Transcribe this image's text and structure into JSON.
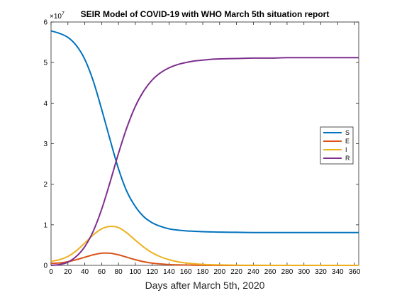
{
  "chart_data": {
    "type": "line",
    "title": "SEIR Model of COVID-19 with WHO March 5th situation report",
    "xlabel": "Days after March 5th, 2020",
    "ylabel": "",
    "xlim": [
      0,
      365
    ],
    "ylim": [
      0,
      6
    ],
    "y_exponent_label": "×10",
    "y_exponent_power": "7",
    "x_ticks": [
      0,
      20,
      40,
      60,
      80,
      100,
      120,
      140,
      160,
      180,
      200,
      220,
      240,
      260,
      280,
      300,
      320,
      340,
      360
    ],
    "y_ticks": [
      0,
      1,
      2,
      3,
      4,
      5,
      6
    ],
    "x_tick_labels": [
      "0",
      "20",
      "40",
      "60",
      "80",
      "100",
      "120",
      "140",
      "160",
      "180",
      "200",
      "220",
      "240",
      "260",
      "280",
      "300",
      "320",
      "340",
      "360"
    ],
    "y_tick_labels": [
      "0",
      "1",
      "2",
      "3",
      "4",
      "5",
      "6"
    ],
    "grid": false,
    "legend_position": "right",
    "x": [
      0,
      10,
      20,
      30,
      40,
      50,
      60,
      70,
      80,
      90,
      100,
      110,
      120,
      130,
      140,
      150,
      160,
      170,
      180,
      190,
      200,
      220,
      240,
      260,
      280,
      300,
      320,
      340,
      365
    ],
    "series": [
      {
        "name": "S",
        "color": "#0072BD",
        "values": [
          5.78,
          5.72,
          5.62,
          5.42,
          5.08,
          4.55,
          3.85,
          3.1,
          2.38,
          1.82,
          1.45,
          1.2,
          1.05,
          0.96,
          0.9,
          0.87,
          0.85,
          0.84,
          0.83,
          0.825,
          0.82,
          0.815,
          0.81,
          0.81,
          0.81,
          0.81,
          0.81,
          0.81,
          0.81
        ]
      },
      {
        "name": "E",
        "color": "#D95319",
        "values": [
          0.05,
          0.06,
          0.09,
          0.14,
          0.2,
          0.26,
          0.3,
          0.3,
          0.26,
          0.2,
          0.14,
          0.09,
          0.055,
          0.035,
          0.02,
          0.012,
          0.008,
          0.005,
          0.003,
          0.002,
          0.001,
          0.0,
          0.0,
          0.0,
          0.0,
          0.0,
          0.0,
          0.0,
          0.0
        ]
      },
      {
        "name": "I",
        "color": "#EDB120",
        "values": [
          0.1,
          0.14,
          0.22,
          0.36,
          0.55,
          0.75,
          0.9,
          0.96,
          0.93,
          0.8,
          0.62,
          0.45,
          0.31,
          0.21,
          0.14,
          0.09,
          0.06,
          0.04,
          0.025,
          0.016,
          0.01,
          0.004,
          0.002,
          0.001,
          0.0,
          0.0,
          0.0,
          0.0,
          0.0
        ]
      },
      {
        "name": "R",
        "color": "#7E2F8E",
        "values": [
          0.0,
          0.02,
          0.08,
          0.22,
          0.46,
          0.84,
          1.38,
          2.05,
          2.76,
          3.4,
          3.92,
          4.3,
          4.57,
          4.75,
          4.87,
          4.95,
          5.0,
          5.04,
          5.06,
          5.08,
          5.09,
          5.1,
          5.11,
          5.11,
          5.12,
          5.12,
          5.12,
          5.12,
          5.12
        ]
      }
    ]
  }
}
